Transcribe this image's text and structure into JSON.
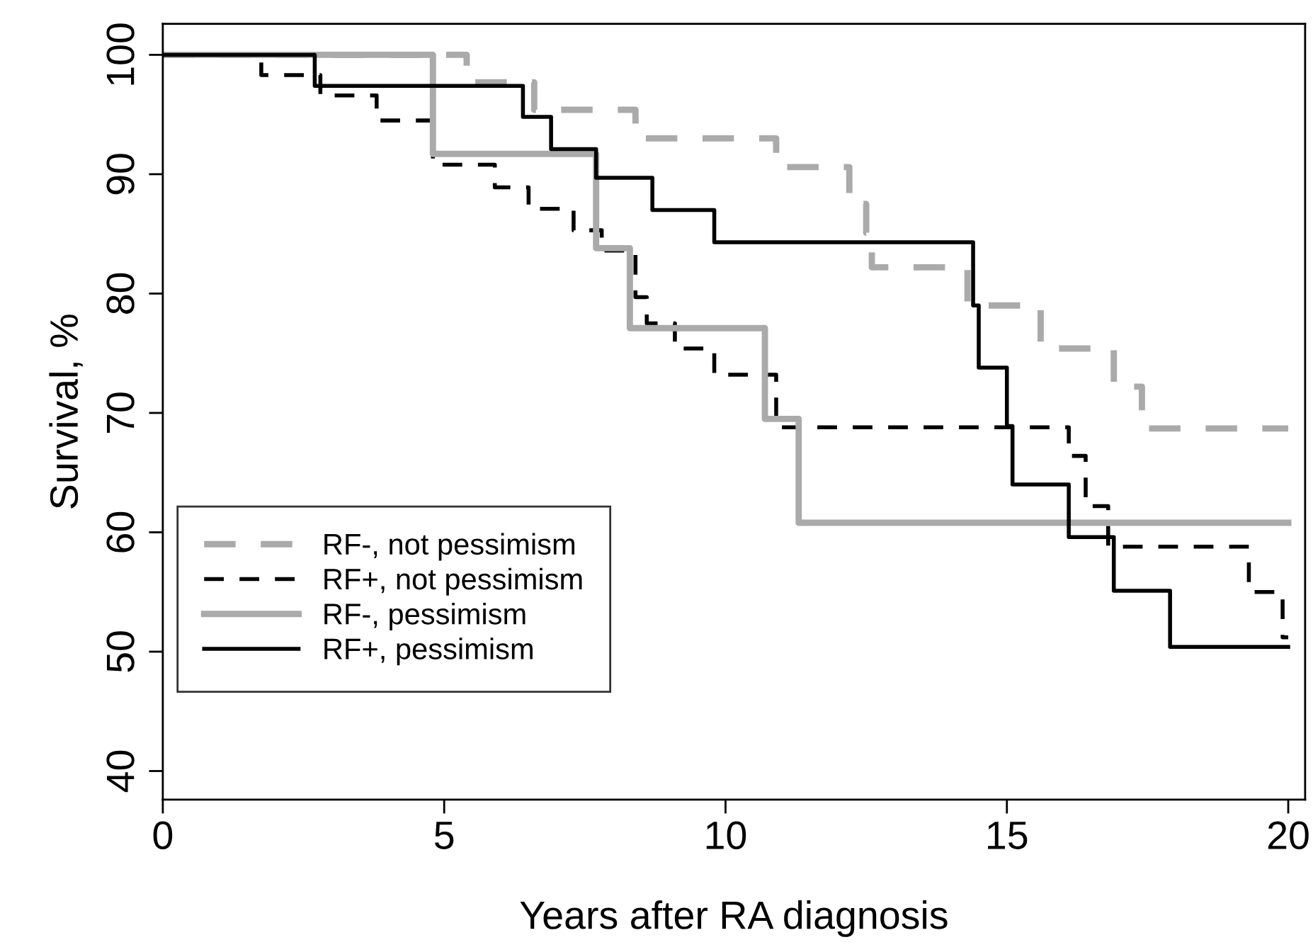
{
  "chart_data": {
    "type": "step",
    "xlabel": "Years after RA diagnosis",
    "ylabel": "Survival, %",
    "xlim": [
      0,
      20.3
    ],
    "ylim": [
      37.6,
      102.6
    ],
    "xticks": [
      0,
      5,
      10,
      15,
      20
    ],
    "yticks": [
      40,
      50,
      60,
      70,
      80,
      90,
      100
    ],
    "grid": false,
    "legend": "bottom left",
    "marker": "none",
    "series": [
      {
        "name": "RF-, not pessimism",
        "color": "#aaaaaa",
        "line_style": "dashed",
        "x": [
          0,
          5.4,
          6.6,
          8.4,
          10.9,
          12.2,
          12.5,
          12.6,
          14.3,
          15.6,
          16.9,
          17.4,
          20
        ],
        "values": [
          100,
          97.7,
          95.4,
          93.0,
          90.6,
          87.5,
          85.1,
          82.2,
          79.0,
          75.4,
          72.2,
          68.7,
          68.7
        ]
      },
      {
        "name": "RF+, not pessimism",
        "color": "#000000",
        "line_style": "dashed",
        "x": [
          0,
          1.75,
          2.8,
          3.8,
          4.8,
          5.9,
          6.5,
          7.3,
          7.8,
          8.4,
          8.6,
          9.1,
          9.8,
          10.9,
          16.1,
          16.4,
          16.8,
          19.3,
          19.9,
          20
        ],
        "values": [
          100,
          98.3,
          96.6,
          94.5,
          90.8,
          88.9,
          87.1,
          85.3,
          83.6,
          79.7,
          77.5,
          75.4,
          73.2,
          68.8,
          66.4,
          62.2,
          58.8,
          55.0,
          51.2,
          51.2
        ]
      },
      {
        "name": "RF-, pessimism",
        "color": "#aaaaaa",
        "line_style": "solid",
        "x": [
          0,
          4.8,
          7.7,
          8.3,
          10.7,
          11.3,
          20
        ],
        "values": [
          100,
          91.7,
          83.8,
          77.1,
          69.5,
          60.8,
          60.8
        ]
      },
      {
        "name": "RF+, pessimism",
        "color": "#000000",
        "line_style": "solid",
        "x": [
          0,
          2.7,
          6.4,
          6.9,
          7.7,
          8.7,
          9.8,
          14.4,
          14.5,
          15.0,
          15.1,
          16.1,
          16.9,
          17.9,
          20
        ],
        "values": [
          100,
          97.4,
          94.8,
          92.1,
          89.7,
          87.0,
          84.3,
          79.0,
          73.8,
          68.9,
          64.0,
          59.6,
          55.1,
          50.4,
          50.4
        ]
      }
    ]
  }
}
